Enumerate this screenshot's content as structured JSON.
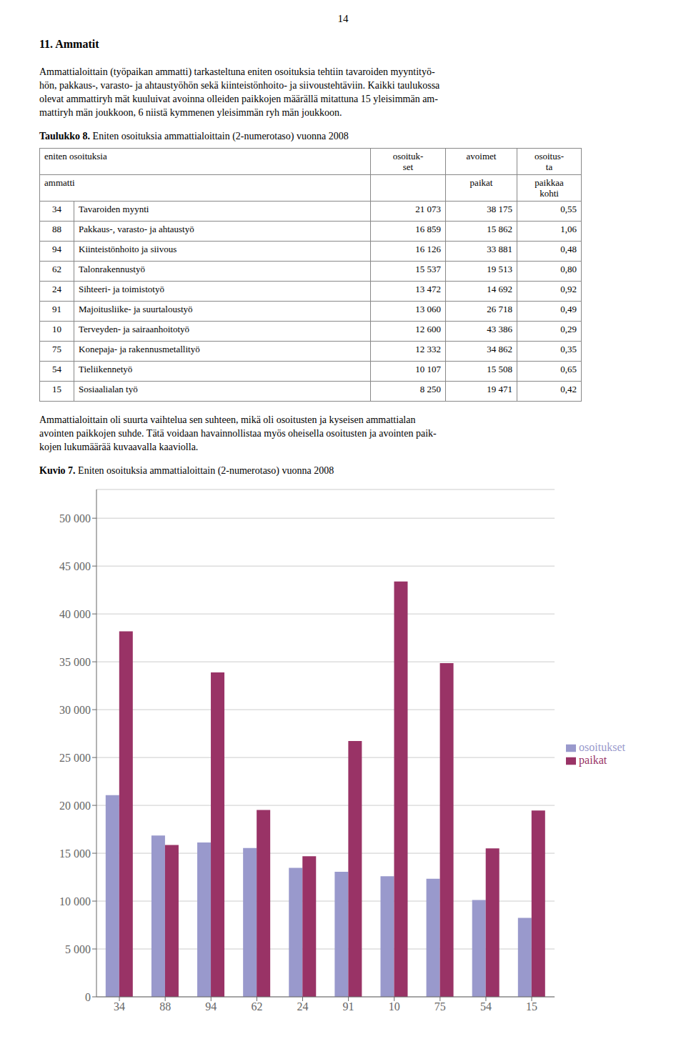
{
  "page_number": "14",
  "section_title": "11. Ammatit",
  "para1_lines": [
    "Ammattialoittain (työpaikan ammatti) tarkasteltuna eniten osoituksia tehtiin tavaroiden myyntityö-",
    "hön, pakkaus-, varasto- ja ahtaustyöhön sekä kiinteistönhoito- ja siivoustehtäviin. Kaikki taulukossa",
    "olevat ammattiryh mät kuuluivat avoinna olleiden paikkojen määrällä mitattuna 15 yleisimmän am-",
    "mattiryh män joukkoon, 6 niistä kymmenen yleisimmän ryh män joukkoon."
  ],
  "table": {
    "title": "Taulukko 8. Eniten osoituksia ammattialoittain (2-numerotaso) vuonna 2008",
    "header_rows": [
      [
        [
          "eniten osoituksia"
        ],
        [
          "osoituk-",
          "set"
        ],
        [
          "avoimet"
        ],
        [
          "osoitus-",
          "ta"
        ]
      ],
      [
        [
          "ammatti"
        ],
        [],
        [
          "paikat"
        ],
        [
          "paikkaa",
          "kohti"
        ]
      ]
    ],
    "rows": [
      [
        "34",
        "Tavaroiden myynti",
        "21 073",
        "38 175",
        "0,55"
      ],
      [
        "88",
        "Pakkaus-, varasto- ja ahtaustyö",
        "16 859",
        "15 862",
        "1,06"
      ],
      [
        "94",
        "Kiinteistönhoito ja siivous",
        "16 126",
        "33 881",
        "0,48"
      ],
      [
        "62",
        "Talonrakennustyö",
        "15 537",
        "19 513",
        "0,80"
      ],
      [
        "24",
        "Sihteeri- ja toimistotyö",
        "13 472",
        "14 692",
        "0,92"
      ],
      [
        "91",
        "Majoitusliike- ja suurtaloustyö",
        "13 060",
        "26 718",
        "0,49"
      ],
      [
        "10",
        "Terveyden- ja sairaanhoitotyö",
        "12 600",
        "43 386",
        "0,29"
      ],
      [
        "75",
        "Konepaja- ja rakennusmetallityö",
        "12 332",
        "34 862",
        "0,35"
      ],
      [
        "54",
        "Tieliikennetyö",
        "10 107",
        "15 508",
        "0,65"
      ],
      [
        "15",
        "Sosiaalialan työ",
        "8 250",
        "19 471",
        "0,42"
      ]
    ]
  },
  "para2_lines": [
    "Ammattialoittain oli suurta vaihtelua sen suhteen, mikä oli osoitusten ja kyseisen ammattialan",
    "avointen paikkojen suhde. Tätä voidaan havainnollistaa myös oheisella osoitusten ja avointen paik-",
    "kojen lukumäärää kuvaavalla kaaviolla."
  ],
  "chart_data": {
    "type": "bar",
    "title": "Kuvio 7. Eniten osoituksia ammattialoittain (2-numerotaso) vuonna 2008",
    "categories": [
      "34",
      "88",
      "94",
      "62",
      "24",
      "91",
      "10",
      "75",
      "54",
      "15"
    ],
    "series": [
      {
        "name": "osoitukset",
        "color": "#9999CC",
        "values": [
          21073,
          16859,
          16126,
          15537,
          13472,
          13060,
          12600,
          12332,
          10107,
          8250
        ]
      },
      {
        "name": "paikat",
        "color": "#993366",
        "values": [
          38175,
          15862,
          33881,
          19513,
          14692,
          26718,
          43386,
          34862,
          15508,
          19471
        ]
      }
    ],
    "ylim": [
      0,
      53000
    ],
    "yticks": [
      0,
      {
        "value": 5000,
        "label": "5 000"
      },
      {
        "value": 10000,
        "label": "10 000"
      },
      {
        "value": 15000,
        "label": "15 000"
      },
      {
        "value": 20000,
        "label": "20 000"
      },
      {
        "value": 25000,
        "label": "25 000"
      },
      {
        "value": 30000,
        "label": "30 000"
      },
      {
        "value": 35000,
        "label": "35 000"
      },
      {
        "value": 40000,
        "label": "40 000"
      },
      {
        "value": 45000,
        "label": "45 000"
      },
      {
        "value": 50000,
        "label": "50 000"
      }
    ],
    "grid": true,
    "legend": "right"
  }
}
